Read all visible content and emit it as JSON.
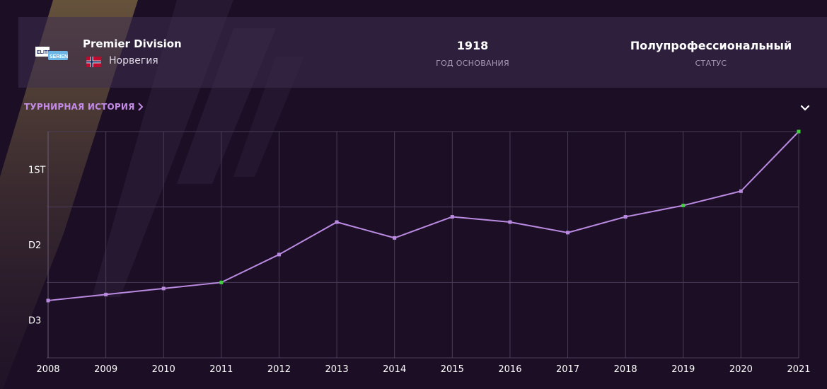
{
  "competition": {
    "name": "Premier Division",
    "country": "Норвегия",
    "logo_text": "ELITE SERIEN",
    "flag_icon": "norway-flag-icon"
  },
  "stats": [
    {
      "value": "1918",
      "label": "ГОД ОСНОВАНИЯ"
    },
    {
      "value": "Полупрофессиональный",
      "label": "СТАТУС"
    }
  ],
  "history": {
    "link_label": "ТУРНИРНАЯ ИСТОРИЯ",
    "link_icon": "chevron-right-icon",
    "collapse_icon": "chevron-down-icon"
  },
  "colors": {
    "line": "#b98ae0",
    "highlight_point": "#3fd13f",
    "accent": "#c38ae6"
  },
  "chart_data": {
    "type": "line",
    "x": [
      "2008",
      "2009",
      "2010",
      "2011",
      "2012",
      "2013",
      "2014",
      "2015",
      "2016",
      "2017",
      "2018",
      "2019",
      "2020",
      "2021"
    ],
    "values": [
      2.74,
      2.66,
      2.58,
      2.5,
      2.13,
      1.7,
      1.91,
      1.63,
      1.7,
      1.84,
      1.63,
      1.48,
      1.29,
      0.5
    ],
    "highlighted_indices": [
      3,
      11,
      13
    ],
    "y_tick_labels": [
      "1ST",
      "D2",
      "D3"
    ],
    "ylim": [
      0.5,
      3.5
    ],
    "y_inverted": true,
    "grid": true
  }
}
